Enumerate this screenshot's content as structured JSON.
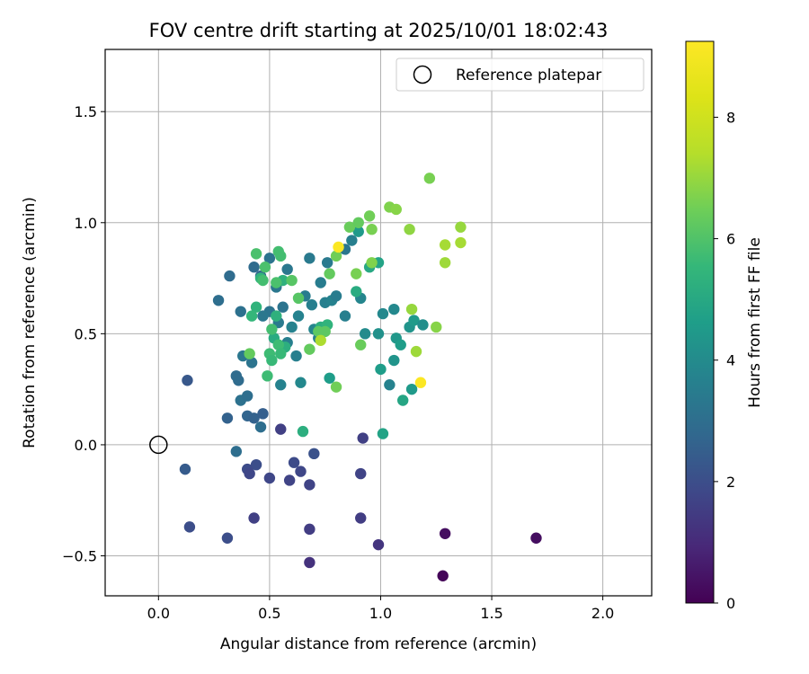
{
  "chart_data": {
    "type": "scatter",
    "title": "FOV centre drift starting at 2025/10/01 18:02:43",
    "xlabel": "Angular distance from reference (arcmin)",
    "ylabel": "Rotation from reference (arcmin)",
    "xlim": [
      -0.24,
      2.22
    ],
    "ylim": [
      -0.68,
      1.78
    ],
    "xticks": [
      0.0,
      0.5,
      1.0,
      1.5,
      2.0
    ],
    "xtick_labels": [
      "0.0",
      "0.5",
      "1.0",
      "1.5",
      "2.0"
    ],
    "yticks": [
      -0.5,
      0.0,
      0.5,
      1.0,
      1.5
    ],
    "ytick_labels": [
      "−0.5",
      "0.0",
      "0.5",
      "1.0",
      "1.5"
    ],
    "grid": true,
    "legend": {
      "label": "Reference platepar",
      "position": "upper right"
    },
    "reference_point": {
      "x": 0.0,
      "y": 0.0
    },
    "colorbar": {
      "label": "Hours from first FF file",
      "min": 0,
      "max": 9.25,
      "ticks": [
        0,
        2,
        4,
        6,
        8
      ],
      "tick_labels": [
        "0",
        "2",
        "4",
        "6",
        "8"
      ],
      "colormap": "viridis"
    },
    "points": [
      [
        1.28,
        -0.59,
        0.1
      ],
      [
        1.7,
        -0.42,
        0.3
      ],
      [
        1.29,
        -0.4,
        0.3
      ],
      [
        0.68,
        -0.53,
        1.2
      ],
      [
        0.99,
        -0.45,
        1.3
      ],
      [
        0.91,
        -0.33,
        1.5
      ],
      [
        0.68,
        -0.38,
        1.5
      ],
      [
        0.43,
        -0.33,
        1.6
      ],
      [
        0.55,
        0.07,
        1.6
      ],
      [
        0.92,
        0.03,
        1.6
      ],
      [
        0.31,
        -0.42,
        2.0
      ],
      [
        0.14,
        -0.37,
        2.0
      ],
      [
        0.91,
        -0.13,
        1.7
      ],
      [
        0.68,
        -0.18,
        1.7
      ],
      [
        0.64,
        -0.12,
        1.8
      ],
      [
        0.59,
        -0.16,
        1.7
      ],
      [
        0.61,
        -0.08,
        1.9
      ],
      [
        0.7,
        -0.04,
        2.1
      ],
      [
        0.5,
        -0.15,
        1.8
      ],
      [
        0.44,
        -0.09,
        2.0
      ],
      [
        0.4,
        -0.11,
        1.9
      ],
      [
        0.41,
        -0.13,
        1.8
      ],
      [
        0.12,
        -0.11,
        2.4
      ],
      [
        0.13,
        0.29,
        2.3
      ],
      [
        0.35,
        -0.03,
        3.0
      ],
      [
        0.31,
        0.12,
        2.6
      ],
      [
        0.4,
        0.13,
        2.7
      ],
      [
        0.43,
        0.12,
        2.6
      ],
      [
        0.47,
        0.14,
        2.5
      ],
      [
        0.46,
        0.08,
        3.0
      ],
      [
        0.36,
        0.29,
        2.9
      ],
      [
        0.35,
        0.31,
        2.9
      ],
      [
        0.37,
        0.2,
        3.1
      ],
      [
        0.4,
        0.22,
        3.0
      ],
      [
        0.42,
        0.37,
        3.2
      ],
      [
        0.38,
        0.4,
        3.3
      ],
      [
        0.27,
        0.65,
        3.0
      ],
      [
        0.32,
        0.76,
        2.9
      ],
      [
        0.37,
        0.6,
        3.1
      ],
      [
        0.43,
        0.8,
        2.9
      ],
      [
        0.46,
        0.76,
        2.8
      ],
      [
        0.5,
        0.84,
        3.2
      ],
      [
        0.53,
        0.71,
        3.3
      ],
      [
        0.56,
        0.62,
        3.2
      ],
      [
        0.58,
        0.79,
        3.3
      ],
      [
        0.5,
        0.6,
        3.2
      ],
      [
        0.54,
        0.55,
        3.4
      ],
      [
        0.47,
        0.58,
        3.3
      ],
      [
        0.55,
        0.27,
        3.7
      ],
      [
        0.58,
        0.46,
        3.6
      ],
      [
        0.6,
        0.53,
        3.7
      ],
      [
        0.62,
        0.4,
        3.6
      ],
      [
        0.63,
        0.58,
        3.7
      ],
      [
        0.64,
        0.28,
        3.9
      ],
      [
        0.66,
        0.67,
        3.5
      ],
      [
        0.68,
        0.84,
        3.4
      ],
      [
        0.69,
        0.63,
        3.6
      ],
      [
        0.7,
        0.52,
        3.8
      ],
      [
        0.72,
        0.48,
        3.6
      ],
      [
        0.73,
        0.73,
        3.5
      ],
      [
        0.75,
        0.64,
        3.6
      ],
      [
        0.76,
        0.82,
        3.4
      ],
      [
        0.78,
        0.65,
        3.7
      ],
      [
        0.8,
        0.67,
        3.5
      ],
      [
        0.84,
        0.58,
        3.6
      ],
      [
        0.84,
        0.88,
        3.3
      ],
      [
        0.87,
        0.92,
        3.6
      ],
      [
        0.91,
        0.66,
        3.8
      ],
      [
        0.93,
        0.5,
        4.0
      ],
      [
        0.99,
        0.5,
        4.2
      ],
      [
        1.01,
        0.59,
        3.9
      ],
      [
        1.06,
        0.61,
        3.9
      ],
      [
        1.04,
        0.27,
        3.7
      ],
      [
        1.06,
        0.38,
        4.3
      ],
      [
        1.07,
        0.48,
        4.4
      ],
      [
        1.09,
        0.45,
        4.6
      ],
      [
        1.13,
        0.53,
        4.3
      ],
      [
        1.15,
        0.56,
        4.5
      ],
      [
        1.14,
        0.25,
        4.5
      ],
      [
        1.19,
        0.54,
        4.1
      ],
      [
        1.1,
        0.2,
        4.9
      ],
      [
        1.0,
        0.34,
        4.6
      ],
      [
        1.01,
        0.05,
        4.8
      ],
      [
        0.77,
        0.3,
        4.6
      ],
      [
        0.65,
        0.06,
        5.2
      ],
      [
        0.9,
        0.96,
        4.5
      ],
      [
        0.99,
        0.82,
        4.8
      ],
      [
        0.95,
        0.8,
        5.0
      ],
      [
        0.89,
        0.69,
        5.1
      ],
      [
        0.73,
        0.53,
        5.2
      ],
      [
        0.76,
        0.54,
        5.4
      ],
      [
        0.57,
        0.44,
        5.2
      ],
      [
        0.52,
        0.48,
        5.1
      ],
      [
        0.53,
        0.58,
        5.3
      ],
      [
        0.56,
        0.74,
        5.3
      ],
      [
        0.46,
        0.75,
        5.4
      ],
      [
        0.44,
        0.62,
        5.4
      ],
      [
        0.42,
        0.58,
        5.5
      ],
      [
        0.49,
        0.31,
        5.7
      ],
      [
        0.5,
        0.41,
        5.7
      ],
      [
        0.51,
        0.38,
        5.6
      ],
      [
        0.51,
        0.52,
        5.8
      ],
      [
        0.54,
        0.45,
        5.7
      ],
      [
        0.55,
        0.41,
        5.6
      ],
      [
        0.54,
        0.87,
        5.8
      ],
      [
        0.55,
        0.85,
        5.8
      ],
      [
        0.48,
        0.8,
        5.9
      ],
      [
        0.44,
        0.86,
        5.9
      ],
      [
        0.47,
        0.74,
        5.8
      ],
      [
        0.53,
        0.73,
        5.9
      ],
      [
        0.6,
        0.74,
        6.1
      ],
      [
        0.63,
        0.66,
        6.1
      ],
      [
        0.72,
        0.51,
        6.2
      ],
      [
        0.75,
        0.51,
        6.2
      ],
      [
        0.68,
        0.43,
        6.3
      ],
      [
        0.41,
        0.41,
        6.3
      ],
      [
        0.8,
        0.26,
        6.5
      ],
      [
        0.91,
        0.45,
        6.4
      ],
      [
        0.77,
        0.77,
        6.3
      ],
      [
        0.8,
        0.85,
        6.5
      ],
      [
        0.86,
        0.98,
        6.4
      ],
      [
        0.89,
        0.77,
        6.6
      ],
      [
        0.9,
        1.0,
        6.3
      ],
      [
        0.95,
        1.03,
        6.5
      ],
      [
        0.96,
        0.97,
        6.6
      ],
      [
        0.96,
        0.82,
        6.7
      ],
      [
        1.04,
        1.07,
        6.7
      ],
      [
        1.07,
        1.06,
        6.8
      ],
      [
        1.13,
        0.97,
        6.9
      ],
      [
        1.22,
        1.2,
        6.6
      ],
      [
        1.25,
        0.53,
        6.8
      ],
      [
        1.14,
        0.61,
        7.0
      ],
      [
        1.16,
        0.42,
        7.1
      ],
      [
        1.29,
        0.9,
        7.2
      ],
      [
        1.29,
        0.82,
        7.1
      ],
      [
        1.36,
        0.98,
        7.0
      ],
      [
        1.36,
        0.91,
        7.2
      ],
      [
        0.73,
        0.47,
        7.3
      ],
      [
        0.81,
        0.89,
        9.2
      ],
      [
        1.18,
        0.28,
        9.2
      ]
    ]
  }
}
